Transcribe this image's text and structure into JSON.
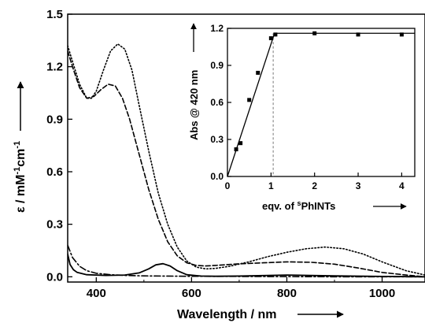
{
  "chart_data": [
    {
      "type": "line",
      "xlabel": "Wavelength / nm",
      "ylabel_prefix": "ε / mM",
      "ylabel_sup1": "-1",
      "ylabel_mid": "cm",
      "ylabel_sup2": "-1",
      "xlim": [
        340,
        1090
      ],
      "ylim": [
        -0.03,
        1.5
      ],
      "xticks": [
        400,
        600,
        800,
        1000
      ],
      "yticks": [
        0.0,
        0.3,
        0.6,
        0.9,
        1.2,
        1.5
      ],
      "series": [
        {
          "style": "solid",
          "x": [
            340,
            345,
            352,
            360,
            380,
            420,
            460,
            490,
            510,
            525,
            540,
            555,
            570,
            590,
            620,
            650,
            700,
            760,
            800,
            850,
            900,
            1000,
            1090
          ],
          "y": [
            0.13,
            0.07,
            0.04,
            0.025,
            0.012,
            0.008,
            0.01,
            0.022,
            0.045,
            0.068,
            0.075,
            0.062,
            0.035,
            0.012,
            0.004,
            0.003,
            0.004,
            0.008,
            0.01,
            0.008,
            0.005,
            0.002,
            0.0
          ]
        },
        {
          "style": "dashed",
          "x": [
            340,
            350,
            365,
            380,
            395,
            410,
            425,
            440,
            455,
            470,
            490,
            510,
            530,
            550,
            570,
            590,
            610,
            630,
            650,
            700,
            750,
            800,
            850,
            900,
            950,
            1000,
            1050,
            1090
          ],
          "y": [
            1.29,
            1.2,
            1.08,
            1.02,
            1.03,
            1.07,
            1.1,
            1.09,
            1.02,
            0.9,
            0.7,
            0.5,
            0.33,
            0.2,
            0.12,
            0.08,
            0.065,
            0.062,
            0.065,
            0.074,
            0.08,
            0.085,
            0.083,
            0.072,
            0.05,
            0.025,
            0.01,
            0.0
          ]
        },
        {
          "style": "dotted",
          "x": [
            340,
            350,
            365,
            380,
            390,
            400,
            415,
            430,
            445,
            460,
            475,
            490,
            510,
            530,
            550,
            570,
            590,
            610,
            630,
            650,
            680,
            720,
            760,
            800,
            840,
            880,
            920,
            960,
            1000,
            1050,
            1090
          ],
          "y": [
            1.32,
            1.23,
            1.1,
            1.02,
            1.02,
            1.06,
            1.18,
            1.29,
            1.33,
            1.3,
            1.18,
            0.98,
            0.72,
            0.48,
            0.3,
            0.17,
            0.09,
            0.055,
            0.045,
            0.048,
            0.06,
            0.085,
            0.115,
            0.14,
            0.16,
            0.17,
            0.16,
            0.13,
            0.085,
            0.035,
            0.01
          ]
        },
        {
          "style": "dash-dot",
          "x": [
            340,
            350,
            365,
            380,
            400,
            430,
            460,
            500,
            600,
            700,
            800,
            900,
            1000,
            1090
          ],
          "y": [
            0.18,
            0.11,
            0.06,
            0.035,
            0.02,
            0.012,
            0.008,
            0.005,
            0.003,
            0.002,
            0.001,
            0.0,
            0.0,
            0.0
          ]
        }
      ]
    },
    {
      "type": "scatter",
      "xlabel_prefix": "eqv. of ",
      "xlabel_sup": "s",
      "xlabel_main": "PhINTs",
      "ylabel": "Abs @ 420 nm",
      "xlim": [
        0,
        4.3
      ],
      "ylim": [
        0,
        1.2
      ],
      "xticks": [
        0,
        1,
        2,
        3,
        4
      ],
      "yticks": [
        0.0,
        0.3,
        0.6,
        0.9,
        1.2
      ],
      "points": {
        "x": [
          0.2,
          0.3,
          0.5,
          0.7,
          1.0,
          1.1,
          2.0,
          3.0,
          4.0
        ],
        "y": [
          0.22,
          0.27,
          0.62,
          0.84,
          1.12,
          1.15,
          1.16,
          1.15,
          1.15
        ]
      },
      "fit_rise": {
        "x": [
          0.0,
          1.08
        ],
        "y": [
          0.0,
          1.16
        ]
      },
      "fit_plateau": {
        "x": [
          1.08,
          4.3
        ],
        "y": [
          1.16,
          1.16
        ]
      },
      "marker_x": 1.05
    }
  ]
}
